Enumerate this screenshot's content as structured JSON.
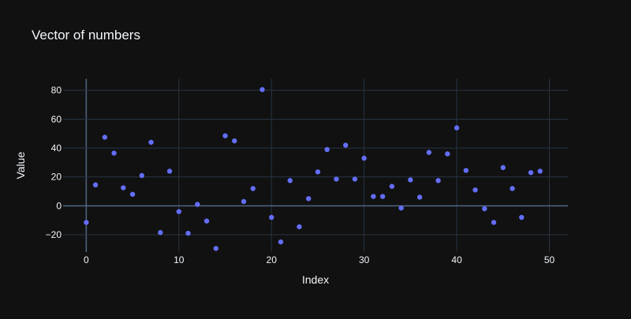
{
  "colors": {
    "background": "#111111",
    "plot_background": "#111111",
    "grid": "#283442",
    "zeroline": "#506784",
    "text": "#f2f5fa",
    "marker": "#636efa"
  },
  "chart_data": {
    "type": "scatter",
    "title": "Vector of numbers",
    "xlabel": "Index",
    "ylabel": "Value",
    "xlim": [
      -2.5,
      52
    ],
    "ylim": [
      -32,
      88
    ],
    "xticks": [
      0,
      10,
      20,
      30,
      40,
      50
    ],
    "yticks": [
      -20,
      0,
      20,
      40,
      60,
      80
    ],
    "ytick_labels": [
      "−20",
      "0",
      "20",
      "40",
      "60",
      "80"
    ],
    "grid": true,
    "legend": "none",
    "series": [
      {
        "x": [
          0,
          1,
          2,
          3,
          4,
          5,
          6,
          7,
          8,
          9,
          10,
          11,
          12,
          13,
          14,
          15,
          16,
          17,
          18,
          19,
          20,
          21,
          22,
          23,
          24,
          25,
          26,
          27,
          28,
          29,
          30,
          31,
          32,
          33,
          34,
          35,
          36,
          37,
          38,
          39,
          40,
          41,
          42,
          43,
          44,
          45,
          46,
          47,
          48,
          49
        ],
        "y": [
          -11.5,
          14.5,
          47.5,
          36.5,
          12.5,
          8,
          21,
          44,
          -18.5,
          24,
          -4,
          -19,
          1,
          -10.5,
          -29.5,
          48.5,
          45,
          3,
          12,
          80.5,
          -8,
          -25,
          17.5,
          -14.5,
          5,
          23.5,
          39,
          18.5,
          42,
          18.5,
          33,
          6.5,
          6.5,
          13.5,
          -1.5,
          18,
          6,
          37,
          17.5,
          36,
          54,
          24.5,
          11,
          -2,
          -11.5,
          26.5,
          12,
          -8,
          23,
          24
        ]
      }
    ]
  }
}
